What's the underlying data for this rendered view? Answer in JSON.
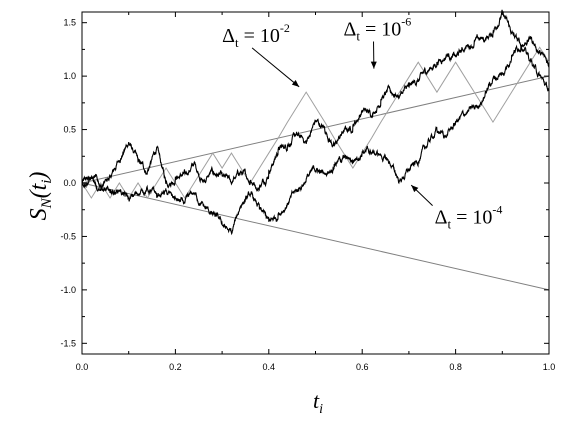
{
  "chart_data": {
    "type": "line",
    "title": "",
    "xlabel": {
      "main": "t",
      "sub": "i"
    },
    "ylabel": {
      "main": "S",
      "sub": "N",
      "arg": "(t",
      "argsub": "i",
      "close": ")"
    },
    "xlim": [
      0.0,
      1.0
    ],
    "ylim": [
      -1.6,
      1.6
    ],
    "xticks": [
      "0.0",
      "0.2",
      "0.4",
      "0.6",
      "0.8",
      "1.0"
    ],
    "xtick_values": [
      0.0,
      0.2,
      0.4,
      0.6,
      0.8,
      1.0
    ],
    "yticks": [
      "-1.5",
      "-1.0",
      "-0.5",
      "0.0",
      "0.5",
      "1.0",
      "1.5"
    ],
    "ytick_values": [
      -1.5,
      -1.0,
      -0.5,
      0.0,
      0.5,
      1.0,
      1.5
    ],
    "grid": false,
    "colors": {
      "walk_dark": "#000000",
      "walk_gray": "#a0a0a0",
      "envelope": "#808080"
    },
    "reference_lines": [
      {
        "x": [
          0.0,
          1.0
        ],
        "y": [
          0.0,
          1.0
        ]
      },
      {
        "x": [
          0.0,
          1.0
        ],
        "y": [
          0.0,
          -1.0
        ]
      }
    ],
    "series": [
      {
        "kind": "coarse",
        "x": [
          0.0,
          0.02,
          0.04,
          0.06,
          0.08,
          0.1,
          0.12,
          0.14,
          0.16,
          0.18,
          0.2,
          0.22,
          0.24,
          0.26,
          0.28,
          0.3,
          0.32,
          0.34,
          0.36,
          0.38,
          0.4,
          0.42,
          0.44,
          0.46,
          0.48,
          0.5,
          0.52,
          0.54,
          0.56,
          0.58,
          0.6,
          0.62,
          0.64,
          0.66,
          0.68,
          0.7,
          0.72,
          0.74,
          0.76,
          0.78,
          0.8,
          0.82,
          0.84,
          0.86,
          0.88,
          0.9,
          0.92,
          0.94,
          0.96,
          0.98,
          1.0
        ],
        "y": [
          0.0,
          -0.14,
          0.0,
          -0.14,
          0.0,
          -0.14,
          0.0,
          -0.14,
          0.0,
          0.14,
          0.0,
          -0.14,
          0.0,
          0.14,
          0.28,
          0.14,
          0.28,
          0.14,
          0.0,
          0.14,
          0.28,
          0.42,
          0.57,
          0.71,
          0.85,
          0.71,
          0.57,
          0.42,
          0.28,
          0.14,
          0.28,
          0.42,
          0.57,
          0.71,
          0.85,
          0.99,
          1.13,
          0.99,
          0.85,
          0.99,
          1.13,
          0.99,
          0.85,
          0.71,
          0.57,
          0.71,
          0.85,
          0.99,
          1.13,
          1.27,
          1.13
        ]
      },
      {
        "kind": "fine-upper",
        "x": [
          0.0,
          0.02,
          0.04,
          0.06,
          0.08,
          0.1,
          0.12,
          0.14,
          0.16,
          0.18,
          0.2,
          0.22,
          0.24,
          0.26,
          0.28,
          0.3,
          0.32,
          0.34,
          0.36,
          0.38,
          0.4,
          0.42,
          0.44,
          0.46,
          0.48,
          0.5,
          0.52,
          0.54,
          0.56,
          0.58,
          0.6,
          0.62,
          0.64,
          0.66,
          0.68,
          0.7,
          0.72,
          0.74,
          0.76,
          0.78,
          0.8,
          0.82,
          0.84,
          0.86,
          0.88,
          0.9,
          0.92,
          0.94,
          0.96,
          0.98,
          1.0
        ],
        "y": [
          0.0,
          0.04,
          -0.06,
          0.05,
          0.22,
          0.38,
          0.2,
          0.1,
          0.32,
          0.0,
          0.05,
          0.08,
          0.18,
          0.02,
          0.1,
          0.06,
          0.0,
          0.1,
          0.02,
          -0.04,
          0.1,
          0.3,
          0.35,
          0.45,
          0.38,
          0.58,
          0.5,
          0.35,
          0.48,
          0.52,
          0.68,
          0.64,
          0.78,
          0.86,
          0.82,
          0.9,
          0.96,
          1.05,
          1.12,
          1.2,
          1.18,
          1.26,
          1.32,
          1.34,
          1.4,
          1.6,
          1.4,
          1.28,
          1.36,
          1.22,
          1.1
        ]
      },
      {
        "kind": "fine-lower",
        "x": [
          0.0,
          0.02,
          0.04,
          0.06,
          0.08,
          0.1,
          0.12,
          0.14,
          0.16,
          0.18,
          0.2,
          0.22,
          0.24,
          0.26,
          0.28,
          0.3,
          0.32,
          0.34,
          0.36,
          0.38,
          0.4,
          0.42,
          0.44,
          0.46,
          0.48,
          0.5,
          0.52,
          0.54,
          0.56,
          0.58,
          0.6,
          0.62,
          0.64,
          0.66,
          0.68,
          0.7,
          0.72,
          0.74,
          0.76,
          0.78,
          0.8,
          0.82,
          0.84,
          0.86,
          0.88,
          0.9,
          0.92,
          0.94,
          0.96,
          0.98,
          1.0
        ],
        "y": [
          0.0,
          0.06,
          -0.02,
          -0.1,
          -0.06,
          -0.16,
          -0.1,
          -0.05,
          -0.12,
          -0.08,
          -0.15,
          -0.2,
          -0.1,
          -0.22,
          -0.3,
          -0.38,
          -0.48,
          -0.2,
          -0.12,
          -0.24,
          -0.36,
          -0.3,
          -0.18,
          -0.08,
          0.04,
          0.12,
          0.08,
          0.18,
          0.24,
          0.2,
          0.3,
          0.28,
          0.26,
          0.18,
          0.02,
          0.12,
          0.2,
          0.36,
          0.5,
          0.44,
          0.56,
          0.64,
          0.7,
          0.8,
          0.98,
          1.02,
          1.2,
          1.3,
          1.14,
          1.0,
          0.86
        ]
      }
    ],
    "annotations": [
      {
        "base": "Δ",
        "sub": "t",
        "eq": " =  10",
        "exp": "-2",
        "x": 0.3,
        "y": 1.32,
        "arrow_to": [
          0.465,
          0.9
        ]
      },
      {
        "base": "Δ",
        "sub": "t",
        "eq": " = 10",
        "exp": "-6",
        "x": 0.56,
        "y": 1.38,
        "arrow_to": [
          0.625,
          1.07
        ]
      },
      {
        "base": "Δ",
        "sub": "t",
        "eq": " = 10",
        "exp": "-4",
        "x": 0.755,
        "y": -0.38,
        "arrow_to": [
          0.705,
          -0.02
        ]
      }
    ]
  }
}
